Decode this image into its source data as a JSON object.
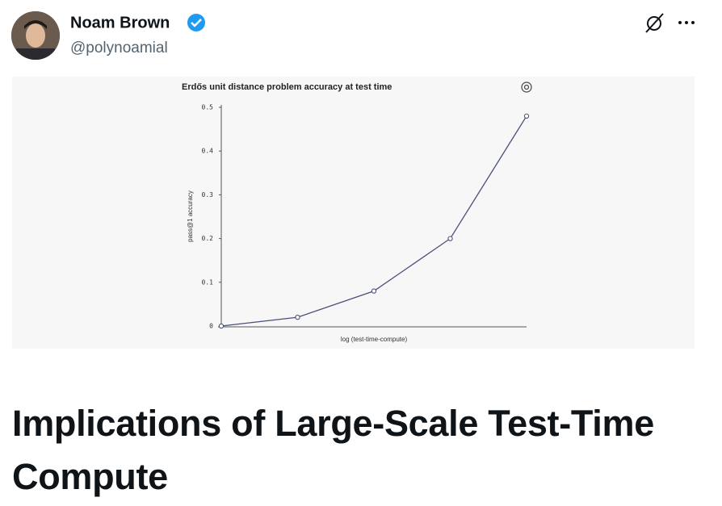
{
  "post": {
    "author_name": "Noam Brown",
    "author_handle": "@polynoamial",
    "article_title": "Implications of Large-Scale Test-Time Compute"
  },
  "chart_data": {
    "type": "line",
    "title": "Erdős unit distance problem accuracy at test time",
    "x_label": "log (test-time-compute)",
    "y_label": "pass@1 accuracy",
    "categories": [
      null,
      null,
      null,
      null,
      null
    ],
    "values": [
      0,
      0.02,
      0.08,
      0.2,
      0.48
    ],
    "color": "#4a4f7a",
    "ylim": [
      0,
      0.5
    ],
    "yticks": [
      0,
      0.1,
      0.2,
      0.3,
      0.4,
      0.5
    ],
    "grid": false
  }
}
